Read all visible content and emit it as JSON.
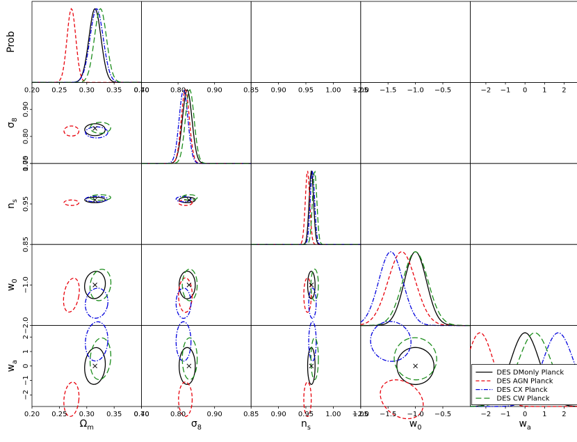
{
  "chart_data": {
    "type": "corner",
    "params": [
      "Ωm",
      "σ8",
      "ns",
      "w0",
      "wa"
    ],
    "label_main": [
      "Ω",
      "σ",
      "n",
      "w",
      "w"
    ],
    "label_sub": [
      "m",
      "8",
      "s",
      "0",
      "a"
    ],
    "diag_ylabel": "Prob",
    "ranges": [
      [
        0.2,
        0.4
      ],
      [
        0.7,
        1.0
      ],
      [
        0.85,
        1.05
      ],
      [
        -2.0,
        0.0
      ],
      [
        -2.8,
        2.8
      ]
    ],
    "tick_values": [
      [
        0.2,
        0.25,
        0.3,
        0.35,
        0.4
      ],
      [
        0.7,
        0.8,
        0.9
      ],
      [
        0.85,
        0.9,
        0.95,
        1.0,
        1.05
      ],
      [
        -2.0,
        -1.5,
        -1.0,
        -0.5
      ],
      [
        -2,
        -1,
        0,
        1,
        2
      ]
    ],
    "tick_labels": [
      [
        "0.20",
        "0.25",
        "0.30",
        "0.35",
        "0.40"
      ],
      [
        "0.70",
        "0.80",
        "0.90"
      ],
      [
        "0.85",
        "0.90",
        "0.95",
        "1.00",
        "1.05"
      ],
      [
        "−2.0",
        "−1.5",
        "−1.0",
        "−0.5"
      ],
      [
        "−2",
        "−1",
        "0",
        "1",
        "2"
      ]
    ],
    "row_tick_values": [
      [],
      [
        0.7,
        0.8,
        0.9
      ],
      [
        0.85,
        0.95,
        1.05
      ],
      [
        -2.0,
        -1.0
      ],
      [
        -2,
        -1,
        0,
        1,
        2
      ]
    ],
    "row_tick_labels": [
      [],
      [
        "0.70",
        "0.80",
        "0.90"
      ],
      [
        "0.85",
        "0.95",
        "1.05"
      ],
      [
        "−2.0",
        "−1.0"
      ],
      [
        "−2",
        "−1",
        "0",
        "1",
        "2"
      ]
    ],
    "fiducial": [
      0.315,
      0.83,
      0.96,
      -1.0,
      0.0
    ],
    "series": [
      {
        "name": "DES DMonly Planck",
        "color": "#000000",
        "dash": "none",
        "mean": [
          0.315,
          0.825,
          0.96,
          -1.0,
          0.0
        ],
        "sigma": [
          0.011,
          0.013,
          0.004,
          0.2,
          0.75
        ]
      },
      {
        "name": "DES AGN Planck",
        "color": "#e8000b",
        "dash": "5,3",
        "mean": [
          0.272,
          0.82,
          0.953,
          -1.25,
          -2.3
        ],
        "sigma": [
          0.008,
          0.011,
          0.004,
          0.25,
          0.7
        ]
      },
      {
        "name": "DES CX Planck",
        "color": "#0000dd",
        "dash": "6,2,1.5,2",
        "mean": [
          0.318,
          0.815,
          0.962,
          -1.45,
          1.7
        ],
        "sigma": [
          0.012,
          0.012,
          0.004,
          0.22,
          0.8
        ]
      },
      {
        "name": "DES CW Planck",
        "color": "#1a8c1a",
        "dash": "8,4",
        "mean": [
          0.325,
          0.832,
          0.966,
          -1.0,
          0.5
        ],
        "sigma": [
          0.011,
          0.012,
          0.004,
          0.23,
          0.85
        ]
      }
    ],
    "legend_position": "bottom-right",
    "grid": false
  }
}
